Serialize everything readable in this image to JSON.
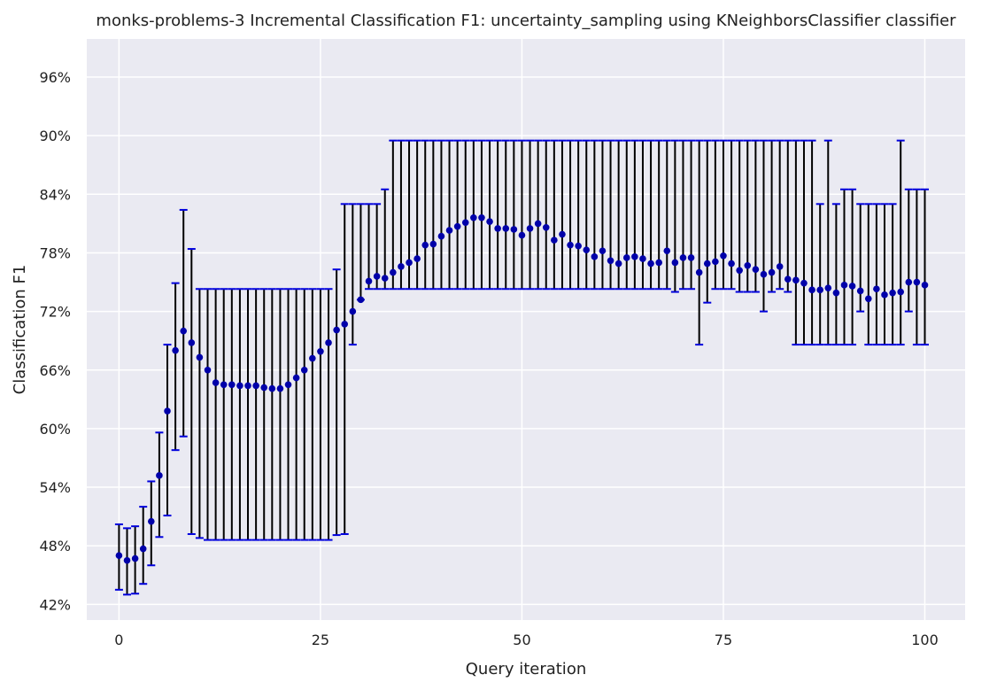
{
  "chart_data": {
    "type": "scatter",
    "title": "monks-problems-3 Incremental Classification F1: uncertainty_sampling using KNeighborsClassifier classifier",
    "xlabel": "Query iteration",
    "ylabel": "Classification F1",
    "xlim": [
      -4,
      105
    ],
    "ylim": [
      40.4,
      99.9
    ],
    "xticks": [
      0,
      25,
      50,
      75,
      100
    ],
    "xtick_labels": [
      "0",
      "25",
      "50",
      "75",
      "100"
    ],
    "yticks": [
      42,
      48,
      54,
      60,
      66,
      72,
      78,
      84,
      90,
      96
    ],
    "ytick_labels": [
      "42%",
      "48%",
      "54%",
      "60%",
      "66%",
      "72%",
      "78%",
      "84%",
      "90%",
      "96%"
    ],
    "grid": true,
    "colors": {
      "background": "#eaeaf2",
      "grid": "#ffffff",
      "marker": "#0000aa",
      "errorbar": "#000000",
      "cap": "#0000dd"
    },
    "series": [
      {
        "x": [
          0,
          1,
          2,
          3,
          4,
          5,
          6,
          7,
          8,
          9,
          10,
          11,
          12,
          13,
          14,
          15,
          16,
          17,
          18,
          19,
          20,
          21,
          22,
          23,
          24,
          25,
          26,
          27,
          28,
          29,
          30,
          31,
          32,
          33,
          34,
          35,
          36,
          37,
          38,
          39,
          40,
          41,
          42,
          43,
          44,
          45,
          46,
          47,
          48,
          49,
          50,
          51,
          52,
          53,
          54,
          55,
          56,
          57,
          58,
          59,
          60,
          61,
          62,
          63,
          64,
          65,
          66,
          67,
          68,
          69,
          70,
          71,
          72,
          73,
          74,
          75,
          76,
          77,
          78,
          79,
          80,
          81,
          82,
          83,
          84,
          85,
          86,
          87,
          88,
          89,
          90,
          91,
          92,
          93,
          94,
          95,
          96,
          97,
          98,
          99,
          100
        ],
        "y": [
          47.0,
          46.5,
          46.7,
          47.7,
          50.5,
          55.2,
          61.8,
          68.0,
          70.0,
          68.8,
          67.3,
          66.0,
          64.7,
          64.5,
          64.5,
          64.4,
          64.4,
          64.4,
          64.2,
          64.1,
          64.1,
          64.5,
          65.2,
          66.0,
          67.2,
          67.9,
          68.8,
          70.1,
          70.7,
          72.0,
          73.2,
          75.1,
          75.6,
          75.4,
          76.0,
          76.6,
          77.0,
          77.4,
          78.8,
          78.9,
          79.7,
          80.3,
          80.7,
          81.1,
          81.6,
          81.6,
          81.2,
          80.5,
          80.5,
          80.4,
          79.8,
          80.5,
          81.0,
          80.6,
          79.3,
          79.9,
          78.8,
          78.7,
          78.3,
          77.6,
          78.2,
          77.2,
          76.9,
          77.5,
          77.6,
          77.4,
          76.9,
          77.0,
          78.2,
          77.0,
          77.5,
          77.5,
          76.0,
          76.9,
          77.1,
          77.7,
          76.9,
          76.2,
          76.7,
          76.3,
          75.8,
          76.0,
          76.6,
          75.3,
          75.2,
          74.9,
          74.2,
          74.2,
          74.4,
          73.9,
          74.7,
          74.6,
          74.1,
          73.3,
          74.3,
          73.7,
          73.9,
          74.0,
          75.0,
          75.0,
          74.7
        ],
        "lower": [
          43.5,
          43.0,
          43.1,
          44.1,
          46.0,
          48.9,
          51.1,
          57.8,
          59.2,
          49.2,
          48.8,
          48.6,
          48.6,
          48.6,
          48.6,
          48.6,
          48.6,
          48.6,
          48.6,
          48.6,
          48.6,
          48.6,
          48.6,
          48.6,
          48.6,
          48.6,
          48.6,
          49.1,
          49.2,
          68.6,
          73.2,
          74.3,
          74.3,
          74.3,
          74.3,
          74.3,
          74.3,
          74.3,
          74.3,
          74.3,
          74.3,
          74.3,
          74.3,
          74.3,
          74.3,
          74.3,
          74.3,
          74.3,
          74.3,
          74.3,
          74.3,
          74.3,
          74.3,
          74.3,
          74.3,
          74.3,
          74.3,
          74.3,
          74.3,
          74.3,
          74.3,
          74.3,
          74.3,
          74.3,
          74.3,
          74.3,
          74.3,
          74.3,
          74.3,
          74.0,
          74.3,
          74.3,
          68.6,
          72.9,
          74.3,
          74.3,
          74.3,
          74.0,
          74.0,
          74.0,
          72.0,
          74.0,
          74.3,
          74.0,
          68.6,
          68.6,
          68.6,
          68.6,
          68.6,
          68.6,
          68.6,
          68.6,
          72.0,
          68.6,
          68.6,
          68.6,
          68.6,
          68.6,
          72.0,
          68.6,
          68.6
        ],
        "upper": [
          50.2,
          49.8,
          50.0,
          52.0,
          54.6,
          59.6,
          68.6,
          74.9,
          82.4,
          78.4,
          74.3,
          74.3,
          74.3,
          74.3,
          74.3,
          74.3,
          74.3,
          74.3,
          74.3,
          74.3,
          74.3,
          74.3,
          74.3,
          74.3,
          74.3,
          74.3,
          74.3,
          76.3,
          83.0,
          83.0,
          83.0,
          83.0,
          83.0,
          84.5,
          89.5,
          89.5,
          89.5,
          89.5,
          89.5,
          89.5,
          89.5,
          89.5,
          89.5,
          89.5,
          89.5,
          89.5,
          89.5,
          89.5,
          89.5,
          89.5,
          89.5,
          89.5,
          89.5,
          89.5,
          89.5,
          89.5,
          89.5,
          89.5,
          89.5,
          89.5,
          89.5,
          89.5,
          89.5,
          89.5,
          89.5,
          89.5,
          89.5,
          89.5,
          89.5,
          89.5,
          89.5,
          89.5,
          89.5,
          89.5,
          89.5,
          89.5,
          89.5,
          89.5,
          89.5,
          89.5,
          89.5,
          89.5,
          89.5,
          89.5,
          89.5,
          89.5,
          89.5,
          83.0,
          89.5,
          83.0,
          84.5,
          84.5,
          83.0,
          83.0,
          83.0,
          83.0,
          83.0,
          89.5,
          84.5,
          84.5,
          84.5
        ]
      }
    ]
  }
}
